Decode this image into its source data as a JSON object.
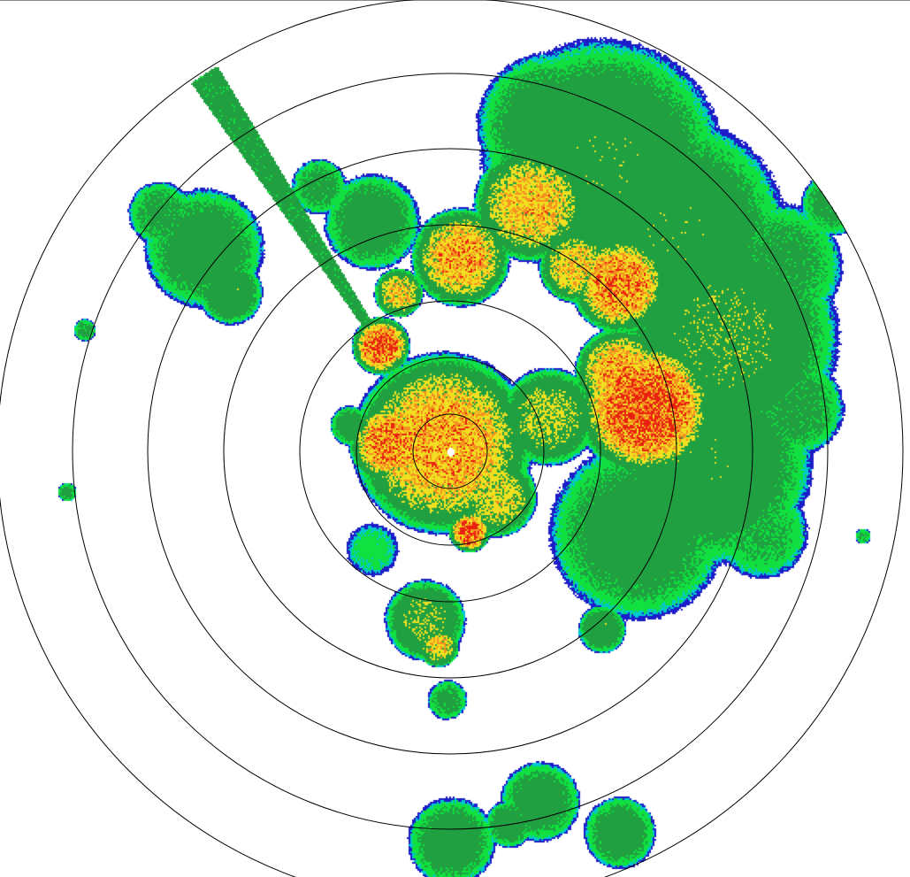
{
  "radar": {
    "product": "reflectivity",
    "range_ring_count": 7,
    "ring_color": "#000000",
    "background": "#ffffff",
    "color_scale": [
      "#1c1cc8",
      "#00c8d0",
      "#10e040",
      "#20a040",
      "#f0e020",
      "#f59020",
      "#e82010"
    ]
  }
}
